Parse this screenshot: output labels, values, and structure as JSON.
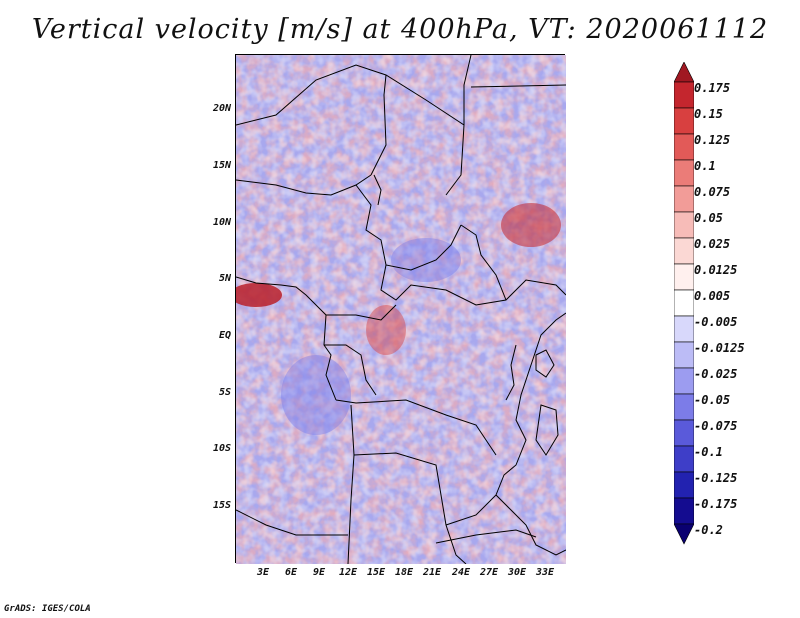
{
  "title": "Vertical velocity [m/s] at 400hPa, VT: 2020061112",
  "credit": "GrADS: IGES/COLA",
  "latitude_labels": [
    "20N",
    "15N",
    "10N",
    "5N",
    "EQ",
    "5S",
    "10S",
    "15S"
  ],
  "longitude_labels": [
    "3E",
    "6E",
    "9E",
    "12E",
    "15E",
    "18E",
    "21E",
    "24E",
    "27E",
    "30E",
    "33E"
  ],
  "colorbar": {
    "levels": [
      "0.175",
      "0.15",
      "0.125",
      "0.1",
      "0.075",
      "0.05",
      "0.025",
      "0.0125",
      "0.005",
      "-0.005",
      "-0.0125",
      "-0.025",
      "-0.05",
      "-0.075",
      "-0.1",
      "-0.125",
      "-0.175",
      "-0.2"
    ],
    "colors": [
      "#a01822",
      "#c4262e",
      "#d84040",
      "#e25a58",
      "#eb7c78",
      "#f29c98",
      "#f7bcb8",
      "#fbd8d4",
      "#fff0ee",
      "#ffffff",
      "#d8d8fb",
      "#bcbcf6",
      "#9c9cf0",
      "#7c7ce8",
      "#5a5ada",
      "#3e3ec8",
      "#2222b0",
      "#140c90",
      "#0a0070"
    ]
  }
}
